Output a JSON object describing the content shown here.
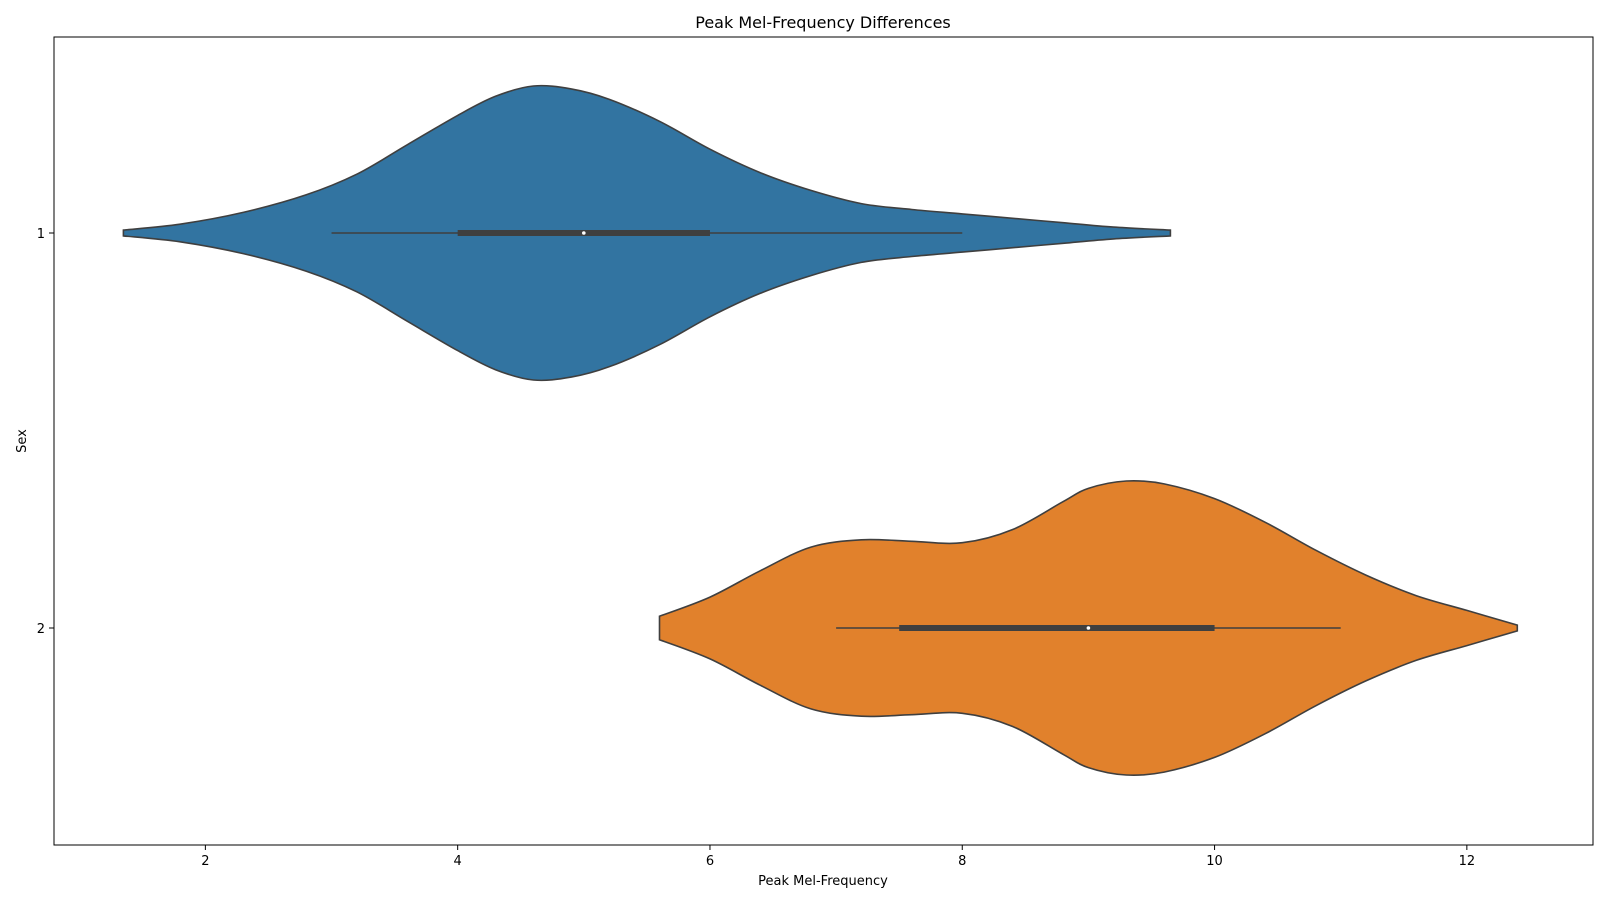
{
  "chart_data": {
    "type": "violin",
    "orientation": "horizontal",
    "title": "Peak Mel-Frequency Differences",
    "xlabel": "Peak Mel-Frequency",
    "ylabel": "Sex",
    "xlim": [
      0.8,
      13.0
    ],
    "x_ticks": [
      2,
      4,
      6,
      8,
      10,
      12
    ],
    "categories": [
      "1",
      "2"
    ],
    "grid": false,
    "legend": "none",
    "series": [
      {
        "category": "1",
        "color": "#3274a1",
        "kde_range": [
          1.35,
          9.65
        ],
        "density_profile": [
          [
            1.35,
            0.02
          ],
          [
            1.8,
            0.06
          ],
          [
            2.3,
            0.14
          ],
          [
            2.8,
            0.26
          ],
          [
            3.2,
            0.4
          ],
          [
            3.6,
            0.6
          ],
          [
            4.0,
            0.8
          ],
          [
            4.3,
            0.93
          ],
          [
            4.6,
            1.0
          ],
          [
            4.9,
            0.98
          ],
          [
            5.2,
            0.91
          ],
          [
            5.6,
            0.76
          ],
          [
            6.0,
            0.57
          ],
          [
            6.4,
            0.41
          ],
          [
            6.8,
            0.29
          ],
          [
            7.2,
            0.2
          ],
          [
            7.6,
            0.16
          ],
          [
            8.0,
            0.13
          ],
          [
            8.4,
            0.1
          ],
          [
            8.8,
            0.07
          ],
          [
            9.2,
            0.04
          ],
          [
            9.65,
            0.02
          ]
        ],
        "whisker": [
          3.0,
          8.0
        ],
        "quartiles": [
          4.0,
          6.0
        ],
        "median": 5.0
      },
      {
        "category": "2",
        "color": "#e1812c",
        "kde_range": [
          5.6,
          12.4
        ],
        "density_profile": [
          [
            5.6,
            0.08
          ],
          [
            6.0,
            0.21
          ],
          [
            6.4,
            0.39
          ],
          [
            6.8,
            0.55
          ],
          [
            7.2,
            0.6
          ],
          [
            7.6,
            0.59
          ],
          [
            8.0,
            0.58
          ],
          [
            8.4,
            0.67
          ],
          [
            8.8,
            0.86
          ],
          [
            9.0,
            0.95
          ],
          [
            9.3,
            1.0
          ],
          [
            9.6,
            0.98
          ],
          [
            10.0,
            0.88
          ],
          [
            10.4,
            0.72
          ],
          [
            10.8,
            0.53
          ],
          [
            11.2,
            0.36
          ],
          [
            11.6,
            0.22
          ],
          [
            12.0,
            0.12
          ],
          [
            12.4,
            0.02
          ]
        ],
        "whisker": [
          7.0,
          11.0
        ],
        "quartiles": [
          7.5,
          10.0
        ],
        "median": 9.0
      }
    ]
  }
}
